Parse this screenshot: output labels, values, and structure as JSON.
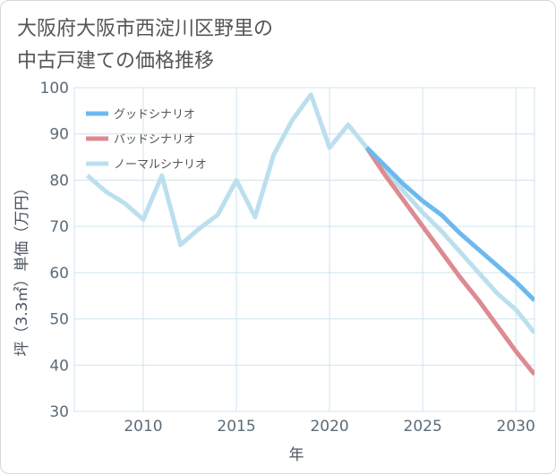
{
  "chart_data": {
    "type": "line",
    "title": "大阪府大阪市西淀川区野里の中古戸建ての価格推移",
    "title_lines": [
      "大阪府大阪市西淀川区野里の",
      "中古戸建ての価格推移"
    ],
    "xlabel": "年",
    "ylabel": "坪（3.3㎡）単価（万円）",
    "xlim": [
      2006.3,
      2031
    ],
    "ylim": [
      30,
      100
    ],
    "x_ticks": [
      2010,
      2015,
      2020,
      2025,
      2030
    ],
    "y_ticks": [
      30,
      40,
      50,
      60,
      70,
      80,
      90,
      100
    ],
    "grid": true,
    "legend_position": "top-left",
    "series": [
      {
        "name": "グッドシナリオ",
        "color": "#6cb9ee",
        "x": [
          2022,
          2023,
          2024,
          2025,
          2026,
          2027,
          2028,
          2029,
          2030,
          2031
        ],
        "values": [
          87,
          83,
          79,
          75.5,
          72.5,
          68.5,
          65,
          61.5,
          58,
          54
        ]
      },
      {
        "name": "バッドシナリオ",
        "color": "#dd8a90",
        "x": [
          2022,
          2023,
          2024,
          2025,
          2026,
          2027,
          2028,
          2029,
          2030,
          2031
        ],
        "values": [
          87,
          81,
          75.5,
          70,
          64.5,
          59,
          54,
          48.5,
          43,
          38
        ]
      },
      {
        "name": "ノーマルシナリオ",
        "color": "#bcdfee",
        "x": [
          2007,
          2008,
          2009,
          2010,
          2011,
          2012,
          2013,
          2014,
          2015,
          2016,
          2017,
          2018,
          2019,
          2020,
          2021,
          2022,
          2023,
          2024,
          2025,
          2026,
          2027,
          2028,
          2029,
          2030,
          2031
        ],
        "values": [
          81,
          77.5,
          75,
          71.5,
          81,
          66,
          69.5,
          72.5,
          80,
          72,
          85.5,
          93,
          98.5,
          87,
          92,
          87,
          82,
          77.5,
          73,
          69,
          64.5,
          60,
          55.5,
          52,
          47
        ]
      }
    ]
  }
}
